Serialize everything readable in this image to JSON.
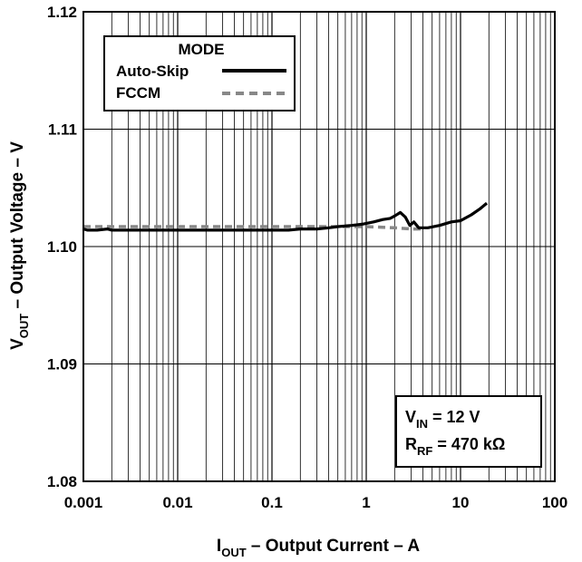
{
  "chart_data": {
    "type": "line",
    "xscale": "log",
    "xlim": [
      0.001,
      100
    ],
    "ylim": [
      1.08,
      1.12
    ],
    "grid": true,
    "x_ticks": [
      "0.001",
      "0.01",
      "0.1",
      "1",
      "10",
      "100"
    ],
    "y_ticks": [
      "1.08",
      "1.09",
      "1.10",
      "1.11",
      "1.12"
    ],
    "xlabel": {
      "main": "I",
      "sub": "OUT",
      "rest": " – Output Current – A"
    },
    "ylabel": {
      "main": "V",
      "sub": "OUT",
      "rest": " – Output Voltage – V"
    },
    "legend": {
      "title": "MODE",
      "position": "top-left"
    },
    "annotation": {
      "line1": {
        "main": "V",
        "sub": "IN",
        "rest": " = 12 V"
      },
      "line2": {
        "main": "R",
        "sub": "RF",
        "rest": " = 470 kΩ"
      }
    },
    "series": [
      {
        "name": "Auto-Skip",
        "color": "#000000",
        "style": "solid",
        "points": [
          [
            0.001,
            1.1015
          ],
          [
            0.0011,
            1.1014
          ],
          [
            0.0014,
            1.1014
          ],
          [
            0.0018,
            1.1015
          ],
          [
            0.002,
            1.1014
          ],
          [
            0.005,
            1.1014
          ],
          [
            0.01,
            1.1014
          ],
          [
            0.05,
            1.1014
          ],
          [
            0.1,
            1.1014
          ],
          [
            0.15,
            1.1014
          ],
          [
            0.2,
            1.1015
          ],
          [
            0.3,
            1.1015
          ],
          [
            0.4,
            1.1016
          ],
          [
            0.5,
            1.1017
          ],
          [
            0.7,
            1.1018
          ],
          [
            0.9,
            1.1019
          ],
          [
            1.2,
            1.1021
          ],
          [
            1.5,
            1.1023
          ],
          [
            1.8,
            1.1024
          ],
          [
            2.0,
            1.1026
          ],
          [
            2.3,
            1.1029
          ],
          [
            2.6,
            1.1025
          ],
          [
            2.9,
            1.1018
          ],
          [
            3.2,
            1.1021
          ],
          [
            3.6,
            1.1016
          ],
          [
            4.5,
            1.1016
          ],
          [
            6.0,
            1.1018
          ],
          [
            8.0,
            1.1021
          ],
          [
            10.0,
            1.1022
          ],
          [
            13.0,
            1.1027
          ],
          [
            16.0,
            1.1032
          ],
          [
            19.0,
            1.1037
          ]
        ]
      },
      {
        "name": "FCCM",
        "color": "#888888",
        "style": "dashed",
        "points": [
          [
            0.001,
            1.1017
          ],
          [
            0.01,
            1.1017
          ],
          [
            0.1,
            1.1017
          ],
          [
            0.3,
            1.1017
          ],
          [
            0.7,
            1.1017
          ],
          [
            1.0,
            1.1017
          ],
          [
            2.0,
            1.1016
          ],
          [
            3.0,
            1.1015
          ],
          [
            4.0,
            1.1015
          ]
        ]
      }
    ]
  }
}
